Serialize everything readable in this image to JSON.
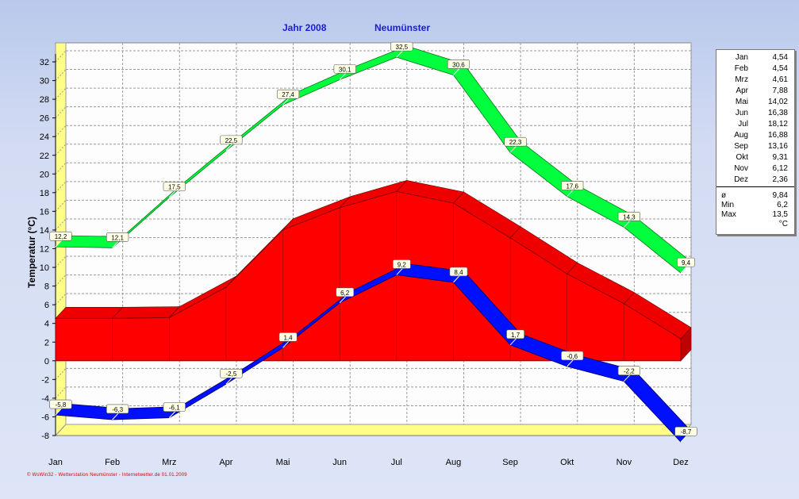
{
  "header": {
    "year_label": "Jahr  2008",
    "station": "Neumünster"
  },
  "footer": {
    "credit": "© WsWin32 - Wetterstation Neumünster - Internetwetter.de  01.01.2009"
  },
  "legend": {
    "months": [
      {
        "month": "Jan",
        "value": "4,54"
      },
      {
        "month": "Feb",
        "value": "4,54"
      },
      {
        "month": "Mrz",
        "value": "4,61"
      },
      {
        "month": "Apr",
        "value": "7,88"
      },
      {
        "month": "Mai",
        "value": "14,02"
      },
      {
        "month": "Jun",
        "value": "16,38"
      },
      {
        "month": "Jul",
        "value": "18,12"
      },
      {
        "month": "Aug",
        "value": "16,88"
      },
      {
        "month": "Sep",
        "value": "13,16"
      },
      {
        "month": "Okt",
        "value": "9,31"
      },
      {
        "month": "Nov",
        "value": "6,12"
      },
      {
        "month": "Dez",
        "value": "2,36"
      }
    ],
    "stats": [
      {
        "key": "ø",
        "value": "9,84"
      },
      {
        "key": "Min",
        "value": "6,2"
      },
      {
        "key": "Max",
        "value": "13,5"
      }
    ],
    "unit": "°C"
  },
  "chart_data": {
    "type": "area",
    "categories": [
      "Jan",
      "Feb",
      "Mrz",
      "Apr",
      "Mai",
      "Jun",
      "Jul",
      "Aug",
      "Sep",
      "Okt",
      "Nov",
      "Dez"
    ],
    "ylabel": "Temperatur  (°C)",
    "ylim": [
      -8,
      32
    ],
    "yticks": [
      -8,
      -6,
      -4,
      -2,
      0,
      2,
      4,
      6,
      8,
      10,
      12,
      14,
      16,
      18,
      20,
      22,
      24,
      26,
      28,
      30,
      32
    ],
    "grid": true,
    "series": [
      {
        "type": "area",
        "color": "#ff0000",
        "values": [
          4.54,
          4.54,
          4.61,
          7.88,
          14.02,
          16.38,
          18.12,
          16.88,
          13.16,
          9.31,
          6.12,
          2.36
        ]
      },
      {
        "type": "line",
        "color": "#00ff3c",
        "values": [
          12.2,
          12.1,
          17.5,
          22.5,
          27.4,
          30.1,
          32.5,
          30.6,
          22.3,
          17.6,
          14.3,
          9.4
        ],
        "labels": [
          "12,2",
          "12,1",
          "17,5",
          "22,5",
          "27,4",
          "30,1",
          "32,5",
          "30,6",
          "22,3",
          "17,6",
          "14,3",
          "9,4"
        ]
      },
      {
        "type": "line",
        "color": "#0000ff",
        "values": [
          -5.8,
          -6.3,
          -6.1,
          -2.5,
          1.4,
          6.2,
          9.2,
          8.4,
          1.7,
          -0.6,
          -2.2,
          -8.7
        ],
        "labels": [
          "-5,8",
          "-6,3",
          "-6,1",
          "-2,5",
          "1,4",
          "6,2",
          "9,2",
          "8,4",
          "1,7",
          "-0,6",
          "-2,2",
          "-8,7"
        ]
      }
    ]
  }
}
